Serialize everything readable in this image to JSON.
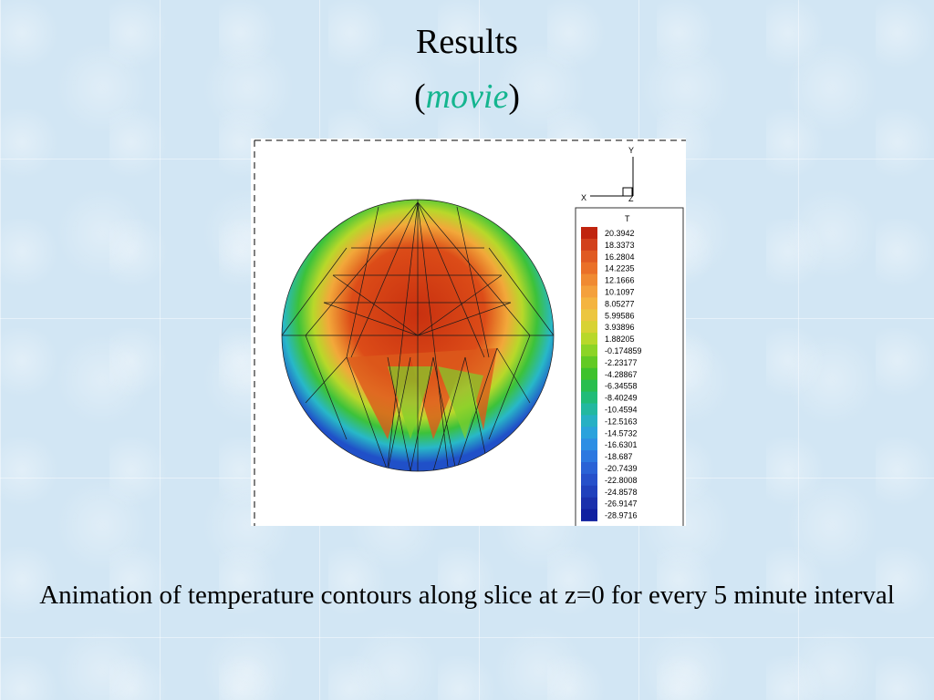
{
  "slide": {
    "title": "Results",
    "subtitle_open": "(",
    "subtitle_link": "movie",
    "subtitle_close": ")",
    "caption": "Animation of temperature contours along slice at z=0 for every 5 minute interval"
  },
  "figure": {
    "axes": {
      "y": "Y",
      "x": "X",
      "z": "Z"
    },
    "legend": {
      "title": "T",
      "values": [
        "20.3942",
        "18.3373",
        "16.2804",
        "14.2235",
        "12.1666",
        "10.1097",
        "8.05277",
        "5.99586",
        "3.93896",
        "1.88205",
        "-0.174859",
        "-2.23177",
        "-4.28867",
        "-6.34558",
        "-8.40249",
        "-10.4594",
        "-12.5163",
        "-14.5732",
        "-16.6301",
        "-18.687",
        "-20.7439",
        "-22.8008",
        "-24.8578",
        "-26.9147",
        "-28.9716"
      ],
      "colors": [
        "#c0240e",
        "#d2401c",
        "#e05a22",
        "#ea7028",
        "#f08a32",
        "#f4a03c",
        "#f4b440",
        "#ecc640",
        "#d8d234",
        "#b8d82a",
        "#8cd426",
        "#62ca24",
        "#3ec22c",
        "#28be4e",
        "#20bc78",
        "#22b8a0",
        "#26b0c4",
        "#2aa2dc",
        "#2c8ee4",
        "#2c78e0",
        "#2a62d6",
        "#2650ca",
        "#2040bc",
        "#1a30ac",
        "#1020a0"
      ]
    }
  }
}
